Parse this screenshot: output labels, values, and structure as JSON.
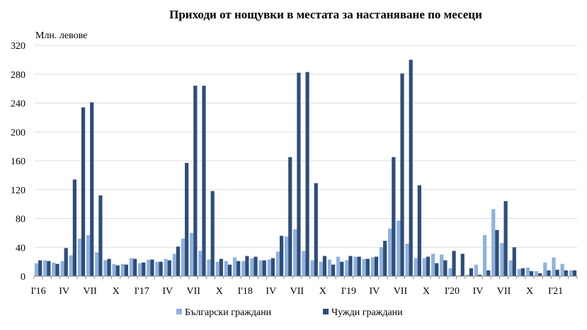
{
  "chart_data": {
    "type": "bar",
    "title": "Приходи от нощувки в местата за настаняване по месеци",
    "ylabel": "Млн. левове",
    "xlabel": "",
    "ylim": [
      0,
      320
    ],
    "yticks": [
      0,
      40,
      80,
      120,
      160,
      200,
      240,
      280,
      320
    ],
    "grid": true,
    "legend_position": "bottom",
    "colors": {
      "bg": "#8fb1de",
      "foreign": "#2e4d7a",
      "grid": "#dddddd",
      "axis": "#888888"
    },
    "categories": [
      "I'16",
      "II'16",
      "III'16",
      "IV'16",
      "V'16",
      "VI'16",
      "VII'16",
      "VIII'16",
      "IX'16",
      "X'16",
      "XI'16",
      "XII'16",
      "I'17",
      "II'17",
      "III'17",
      "IV'17",
      "V'17",
      "VI'17",
      "VII'17",
      "VIII'17",
      "IX'17",
      "X'17",
      "XI'17",
      "XII'17",
      "I'18",
      "II'18",
      "III'18",
      "IV'18",
      "V'18",
      "VI'18",
      "VII'18",
      "VIII'18",
      "IX'18",
      "X'18",
      "XI'18",
      "XII'18",
      "I'19",
      "II'19",
      "III'19",
      "IV'19",
      "V'19",
      "VI'19",
      "VII'19",
      "VIII'19",
      "IX'19",
      "X'19",
      "XI'19",
      "XII'19",
      "I'20",
      "II'20",
      "III'20",
      "IV'20",
      "V'20",
      "VI'20",
      "VII'20",
      "VIII'20",
      "IX'20",
      "X'20",
      "XI'20",
      "XII'20",
      "I'21",
      "II'21",
      "III'21"
    ],
    "tick_labels": [
      {
        "index": 0,
        "label": "I'16"
      },
      {
        "index": 3,
        "label": "IV"
      },
      {
        "index": 6,
        "label": "VII"
      },
      {
        "index": 9,
        "label": "X"
      },
      {
        "index": 12,
        "label": "I'17"
      },
      {
        "index": 15,
        "label": "IV"
      },
      {
        "index": 18,
        "label": "VII"
      },
      {
        "index": 21,
        "label": "X"
      },
      {
        "index": 24,
        "label": "I'18"
      },
      {
        "index": 27,
        "label": "IV"
      },
      {
        "index": 30,
        "label": "VII"
      },
      {
        "index": 33,
        "label": "X"
      },
      {
        "index": 36,
        "label": "I'19"
      },
      {
        "index": 39,
        "label": "IV"
      },
      {
        "index": 42,
        "label": "VII"
      },
      {
        "index": 45,
        "label": "X"
      },
      {
        "index": 48,
        "label": "I'20"
      },
      {
        "index": 51,
        "label": "IV"
      },
      {
        "index": 54,
        "label": "VII"
      },
      {
        "index": 57,
        "label": "X"
      },
      {
        "index": 60,
        "label": "I'21"
      }
    ],
    "series": [
      {
        "name": "Български граждани",
        "values": [
          18,
          22,
          19,
          21,
          29,
          52,
          57,
          33,
          22,
          17,
          17,
          25,
          18,
          23,
          20,
          24,
          31,
          52,
          60,
          35,
          23,
          20,
          21,
          26,
          21,
          25,
          22,
          23,
          34,
          55,
          65,
          35,
          22,
          20,
          23,
          27,
          22,
          27,
          24,
          26,
          40,
          66,
          77,
          45,
          25,
          25,
          31,
          30,
          11,
          1,
          2,
          16,
          57,
          93,
          46,
          22,
          10,
          12,
          7,
          19,
          26,
          17,
          8
        ]
      },
      {
        "name": "Чужди граждани",
        "values": [
          22,
          21,
          17,
          39,
          134,
          234,
          241,
          112,
          24,
          15,
          16,
          24,
          19,
          23,
          20,
          22,
          41,
          157,
          264,
          264,
          118,
          24,
          16,
          21,
          28,
          27,
          22,
          25,
          56,
          165,
          282,
          283,
          129,
          28,
          16,
          20,
          28,
          27,
          24,
          27,
          49,
          165,
          281,
          300,
          126,
          27,
          18,
          22,
          35,
          31,
          11,
          2,
          8,
          64,
          104,
          40,
          11,
          7,
          4,
          8,
          9,
          8,
          8
        ]
      }
    ]
  }
}
